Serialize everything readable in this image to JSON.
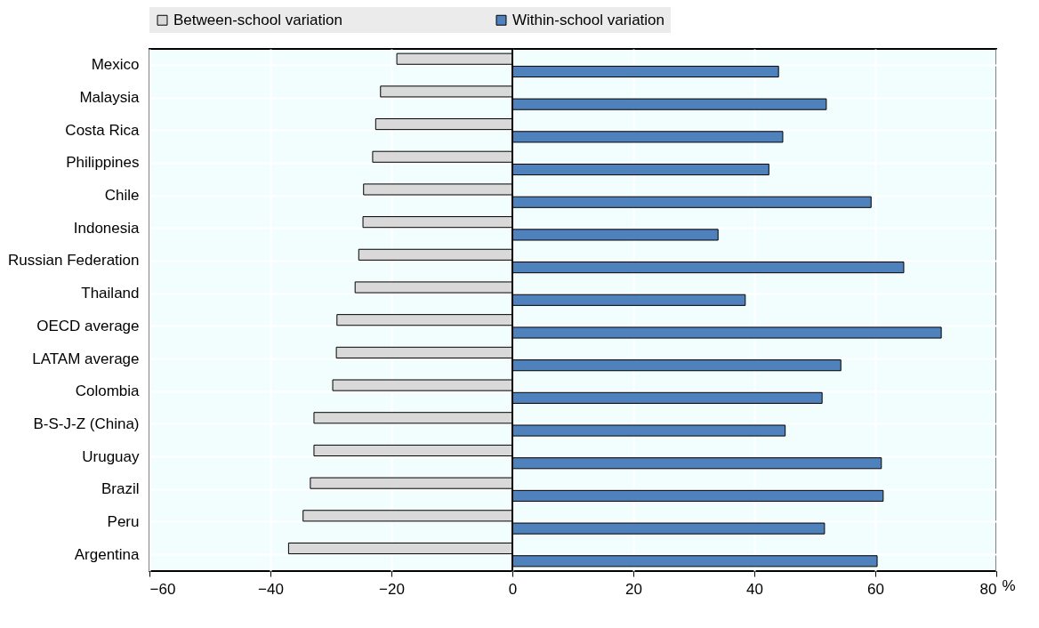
{
  "chart_data": {
    "type": "bar",
    "orientation": "horizontal",
    "categories": [
      "Mexico",
      "Malaysia",
      "Costa Rica",
      "Philippines",
      "Chile",
      "Indonesia",
      "Russian Federation",
      "Thailand",
      "OECD average",
      "LATAM average",
      "Colombia",
      "B-S-J-Z (China)",
      "Uruguay",
      "Brazil",
      "Peru",
      "Argentina"
    ],
    "series": [
      {
        "name": "Between-school variation",
        "color": "#d9d9d9",
        "values": [
          -19.1,
          -21.8,
          -22.6,
          -23.1,
          -24.6,
          -24.7,
          -25.4,
          -26.0,
          -29.0,
          -29.1,
          -29.7,
          -32.8,
          -32.8,
          -33.4,
          -34.6,
          -37.0
        ]
      },
      {
        "name": "Within-school variation",
        "color": "#4f81bd",
        "values": [
          44.0,
          51.9,
          44.7,
          42.4,
          59.3,
          34.0,
          64.7,
          38.5,
          70.9,
          54.3,
          51.2,
          45.1,
          61.0,
          61.3,
          51.6,
          60.3
        ]
      }
    ],
    "xlabel": "%",
    "xlim": [
      -60,
      80
    ],
    "xticks": [
      -60,
      -40,
      -20,
      0,
      20,
      40,
      60,
      80
    ],
    "grid": true,
    "legend": "top"
  }
}
